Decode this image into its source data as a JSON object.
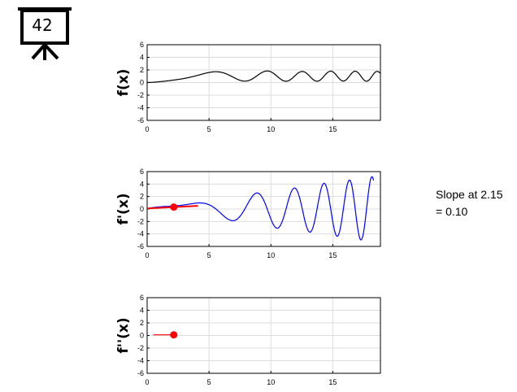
{
  "badge": {
    "number": "42",
    "icon": "easel-presentation-icon"
  },
  "annotation": {
    "line1": "Slope at 2.15",
    "line2": "= 0.10"
  },
  "colors": {
    "f": "#000000",
    "fprime": "#0000ff",
    "highlight": "#ff0000",
    "grid": "#dddddd"
  },
  "chart_data": [
    {
      "type": "line",
      "ylabel": "f(x)",
      "xlim": [
        0,
        18.85
      ],
      "ylim": [
        -6,
        6
      ],
      "xticks": [
        0,
        5,
        10,
        15
      ],
      "yticks": [
        -6,
        -4,
        -2,
        0,
        2,
        4,
        6
      ],
      "grid": true,
      "series": [
        {
          "function": "f",
          "x_range": [
            0,
            18.85
          ]
        }
      ]
    },
    {
      "type": "line",
      "ylabel": "f'(x)",
      "xlim": [
        0,
        18.85
      ],
      "ylim": [
        -6,
        6
      ],
      "xticks": [
        0,
        5,
        10,
        15
      ],
      "yticks": [
        -6,
        -4,
        -2,
        0,
        2,
        4,
        6
      ],
      "grid": true,
      "series": [
        {
          "function": "f'",
          "x_range": [
            0,
            18.3
          ]
        },
        {
          "function": "tangent_at_point",
          "x_range": [
            0,
            4.1
          ]
        }
      ],
      "point": {
        "x": 2.15,
        "y": 0.31
      }
    },
    {
      "type": "line",
      "ylabel": "f''(x)",
      "xlim": [
        0,
        18.85
      ],
      "ylim": [
        -6,
        6
      ],
      "xticks": [
        0,
        5,
        10,
        15
      ],
      "yticks": [
        -6,
        -4,
        -2,
        0,
        2,
        4,
        6
      ],
      "grid": true,
      "series": [
        {
          "function": "f''",
          "x_range": [
            0.5,
            2.15
          ]
        }
      ],
      "point": {
        "x": 2.15,
        "y": 0.1
      }
    }
  ]
}
